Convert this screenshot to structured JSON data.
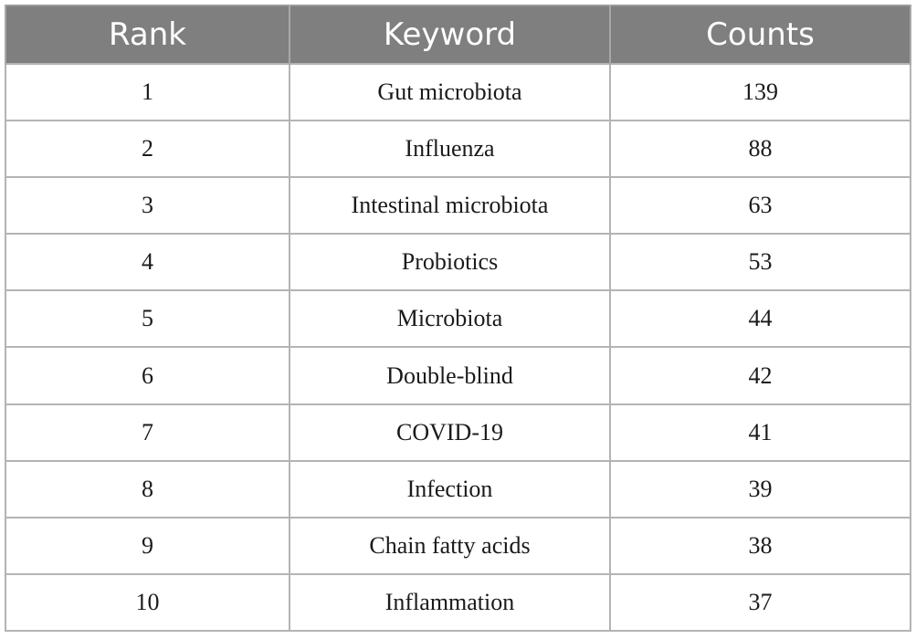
{
  "table": {
    "headers": [
      "Rank",
      "Keyword",
      "Counts"
    ],
    "rows": [
      {
        "rank": "1",
        "keyword": "Gut microbiota",
        "count": "139"
      },
      {
        "rank": "2",
        "keyword": "Influenza",
        "count": "88"
      },
      {
        "rank": "3",
        "keyword": "Intestinal microbiota",
        "count": "63"
      },
      {
        "rank": "4",
        "keyword": "Probiotics",
        "count": "53"
      },
      {
        "rank": "5",
        "keyword": "Microbiota",
        "count": "44"
      },
      {
        "rank": "6",
        "keyword": "Double-blind",
        "count": "42"
      },
      {
        "rank": "7",
        "keyword": "COVID-19",
        "count": "41"
      },
      {
        "rank": "8",
        "keyword": "Infection",
        "count": "39"
      },
      {
        "rank": "9",
        "keyword": "Chain fatty acids",
        "count": "38"
      },
      {
        "rank": "10",
        "keyword": "Inflammation",
        "count": "37"
      }
    ]
  },
  "colors": {
    "header_bg": "#7f7f7f",
    "header_text": "#ffffff",
    "grid_line": "#b4b4b4"
  }
}
